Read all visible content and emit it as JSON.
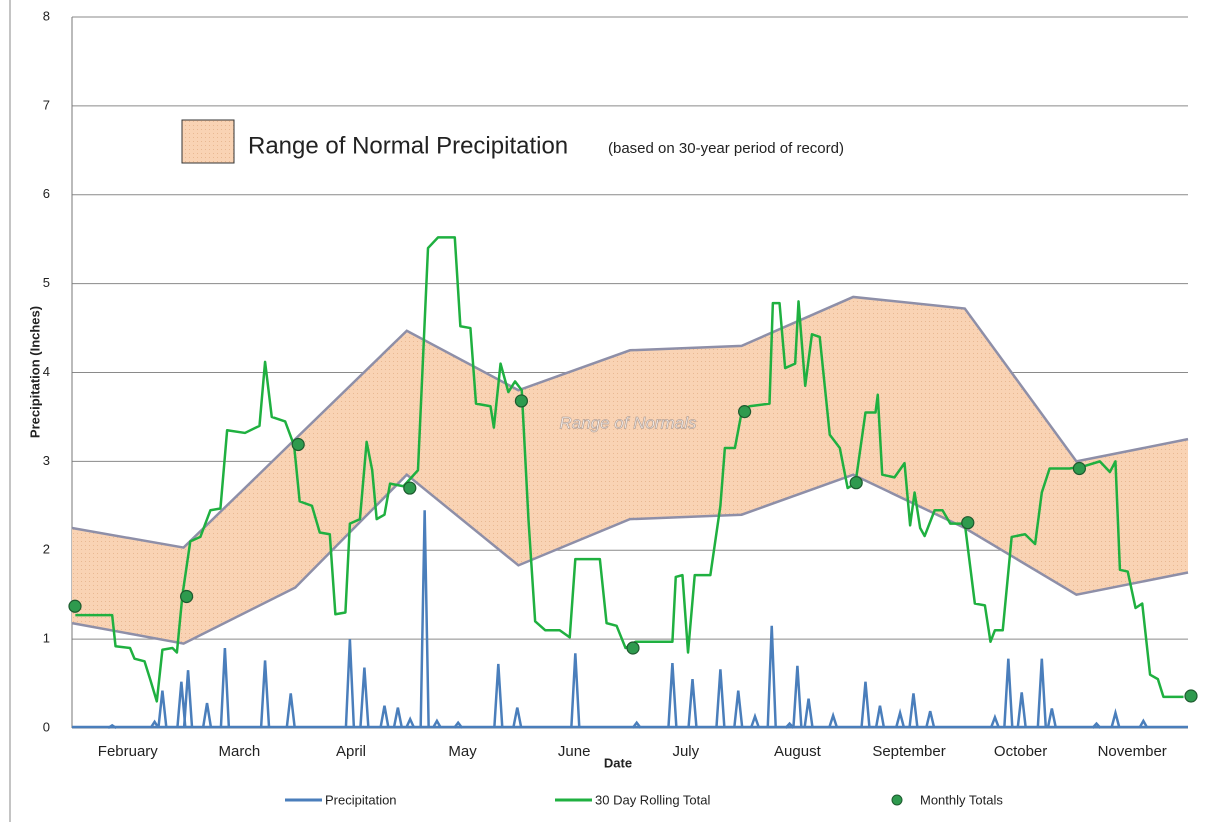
{
  "chart_data": {
    "type": "line",
    "y_label": "Precipitation (Inches)",
    "x_label": "Date",
    "xlim": [
      0,
      10
    ],
    "ylim": [
      0,
      8
    ],
    "yticks": [
      0,
      1,
      2,
      3,
      4,
      5,
      6,
      7,
      8
    ],
    "xticks": [
      {
        "value": 0.5,
        "label": "February"
      },
      {
        "value": 1.5,
        "label": "March"
      },
      {
        "value": 2.5,
        "label": "April"
      },
      {
        "value": 3.5,
        "label": "May"
      },
      {
        "value": 4.5,
        "label": "June"
      },
      {
        "value": 5.5,
        "label": "July"
      },
      {
        "value": 6.5,
        "label": "August"
      },
      {
        "value": 7.5,
        "label": "September"
      },
      {
        "value": 8.5,
        "label": "October"
      },
      {
        "value": 9.5,
        "label": "November"
      }
    ],
    "grid": true,
    "normal_range": {
      "label": "Range of Normals",
      "legend_title": "Range of Normal Precipitation",
      "legend_note": "(based on 30-year period of record)",
      "color": "#f9d3b4",
      "edge_color": "#8e8fa8",
      "x": [
        0,
        1,
        2,
        3,
        4,
        5,
        6,
        7,
        8,
        9,
        10
      ],
      "upper": [
        2.25,
        2.03,
        3.25,
        4.47,
        3.8,
        4.25,
        4.3,
        4.85,
        4.72,
        3.0,
        3.25
      ],
      "lower": [
        1.18,
        0.95,
        1.58,
        2.85,
        1.83,
        2.35,
        2.4,
        2.85,
        2.25,
        1.5,
        1.75
      ]
    },
    "series": [
      {
        "name": "Precipitation",
        "color": "#4a7ebb",
        "style": "spikes",
        "x": [
          0.36,
          0.74,
          0.81,
          0.98,
          1.04,
          1.21,
          1.37,
          1.73,
          1.96,
          2.49,
          2.62,
          2.8,
          2.92,
          3.03,
          3.16,
          3.27,
          3.46,
          3.82,
          3.99,
          4.51,
          5.06,
          5.38,
          5.56,
          5.81,
          5.97,
          6.12,
          6.27,
          6.43,
          6.5,
          6.6,
          6.82,
          7.11,
          7.24,
          7.42,
          7.54,
          7.69,
          8.27,
          8.39,
          8.51,
          8.69,
          8.78,
          9.18,
          9.35,
          9.6
        ],
        "values": [
          0.03,
          0.07,
          0.42,
          0.52,
          0.65,
          0.28,
          0.9,
          0.76,
          0.39,
          1.0,
          0.68,
          0.25,
          0.23,
          0.1,
          2.45,
          0.08,
          0.06,
          0.72,
          0.23,
          0.84,
          0.06,
          0.73,
          0.55,
          0.66,
          0.42,
          0.13,
          1.15,
          0.05,
          0.7,
          0.33,
          0.14,
          0.52,
          0.25,
          0.17,
          0.39,
          0.19,
          0.12,
          0.78,
          0.4,
          0.78,
          0.22,
          0.05,
          0.17,
          0.08
        ]
      },
      {
        "name": "30 Day Rolling Total",
        "color": "#1fb040",
        "style": "line",
        "x": [
          0.03,
          0.36,
          0.39,
          0.52,
          0.56,
          0.65,
          0.7,
          0.76,
          0.81,
          0.9,
          0.94,
          0.99,
          1.06,
          1.15,
          1.24,
          1.33,
          1.39,
          1.55,
          1.68,
          1.73,
          1.79,
          1.91,
          1.99,
          2.04,
          2.15,
          2.22,
          2.31,
          2.36,
          2.45,
          2.49,
          2.58,
          2.64,
          2.69,
          2.73,
          2.8,
          2.85,
          2.97,
          3.1,
          3.19,
          3.28,
          3.43,
          3.48,
          3.57,
          3.62,
          3.75,
          3.78,
          3.84,
          3.91,
          3.97,
          4.03,
          4.09,
          4.15,
          4.24,
          4.37,
          4.46,
          4.51,
          4.73,
          4.79,
          4.88,
          4.96,
          5.05,
          5.18,
          5.38,
          5.41,
          5.47,
          5.52,
          5.58,
          5.72,
          5.81,
          5.85,
          5.94,
          6.0,
          6.07,
          6.25,
          6.28,
          6.34,
          6.39,
          6.48,
          6.51,
          6.57,
          6.63,
          6.7,
          6.79,
          6.88,
          6.95,
          7.02,
          7.11,
          7.2,
          7.22,
          7.26,
          7.37,
          7.46,
          7.51,
          7.55,
          7.6,
          7.64,
          7.73,
          7.8,
          7.87,
          8.0,
          8.09,
          8.18,
          8.23,
          8.27,
          8.34,
          8.42,
          8.54,
          8.63,
          8.69,
          8.76,
          8.94,
          9.08,
          9.21,
          9.3,
          9.35,
          9.39,
          9.46,
          9.53,
          9.59,
          9.66,
          9.73,
          9.78,
          9.96
        ],
        "values": [
          1.27,
          1.27,
          0.92,
          0.9,
          0.78,
          0.75,
          0.55,
          0.3,
          0.88,
          0.9,
          0.85,
          1.5,
          2.1,
          2.15,
          2.45,
          2.47,
          3.35,
          3.32,
          3.4,
          4.12,
          3.5,
          3.45,
          3.18,
          2.55,
          2.5,
          2.2,
          2.18,
          1.28,
          1.3,
          2.3,
          2.35,
          3.22,
          2.9,
          2.35,
          2.4,
          2.75,
          2.72,
          2.9,
          5.4,
          5.52,
          5.52,
          4.52,
          4.5,
          3.65,
          3.62,
          3.38,
          4.1,
          3.78,
          3.9,
          3.8,
          2.35,
          1.2,
          1.1,
          1.1,
          1.02,
          1.9,
          1.9,
          1.18,
          1.15,
          0.9,
          0.97,
          0.97,
          0.97,
          1.7,
          1.72,
          0.85,
          1.72,
          1.72,
          2.5,
          3.15,
          3.15,
          3.55,
          3.62,
          3.65,
          4.78,
          4.78,
          4.05,
          4.1,
          4.8,
          3.85,
          4.43,
          4.4,
          3.3,
          3.15,
          2.7,
          2.75,
          3.55,
          3.55,
          3.75,
          2.85,
          2.82,
          2.98,
          2.28,
          2.65,
          2.25,
          2.16,
          2.45,
          2.45,
          2.3,
          2.3,
          1.4,
          1.38,
          0.97,
          1.1,
          1.1,
          2.15,
          2.18,
          2.07,
          2.65,
          2.92,
          2.92,
          2.95,
          3.0,
          2.88,
          3.0,
          1.78,
          1.76,
          1.35,
          1.4,
          0.6,
          0.55,
          0.35,
          0.35
        ]
      },
      {
        "name": "Monthly Totals",
        "color": "#2e9a4e",
        "style": "points",
        "x": [
          0,
          1,
          2,
          3,
          4,
          5,
          6,
          7,
          8,
          9,
          10
        ],
        "values": [
          1.37,
          1.48,
          3.19,
          2.7,
          3.68,
          0.9,
          3.56,
          2.76,
          2.31,
          2.92,
          0.36
        ]
      }
    ]
  }
}
